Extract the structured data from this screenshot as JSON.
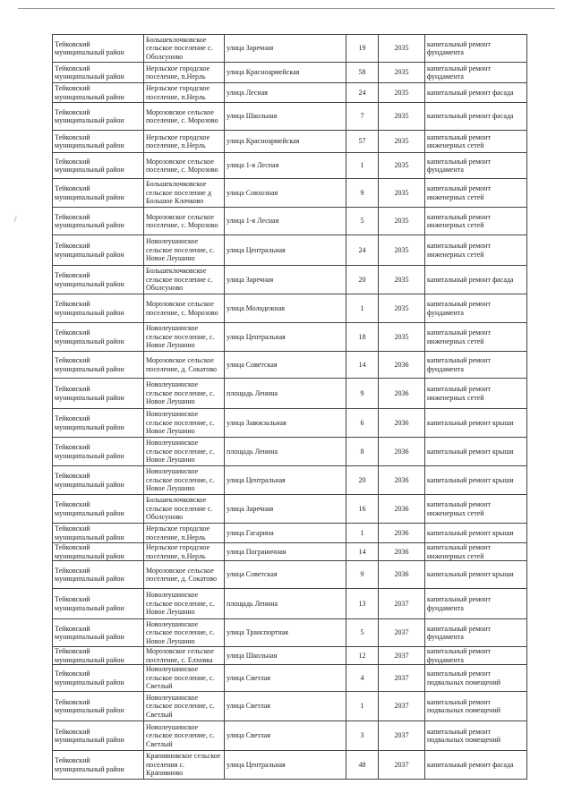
{
  "rows": [
    {
      "district": "Тейковский муниципальный район",
      "settlement": "Большеклочковское сельское поселение с. Оболсуново",
      "street": "улица Заречная",
      "house": "19",
      "year": "2035",
      "work": "капитальный ремонт фундамента"
    },
    {
      "district": "Тейковский муниципальный район",
      "settlement": "Нерльское городское поселение, п.Нерль",
      "street": "улица Красноармейская",
      "house": "58",
      "year": "2035",
      "work": "капитальный ремонт фундамента"
    },
    {
      "district": "Тейковский муниципальный район",
      "settlement": "Нерльское городское поселение, п.Нерль",
      "street": "улица Лесная",
      "house": "24",
      "year": "2035",
      "work": "капитальный ремонт фасада"
    },
    {
      "district": "Тейковский муниципальный район",
      "settlement": "Морозовское сельское поселение, с. Морозово",
      "street": "улица  Школьная",
      "house": "7",
      "year": "2035",
      "work": "капитальный ремонт фасада"
    },
    {
      "district": "Тейковский муниципальный район",
      "settlement": "Нерльское городское поселение, п.Нерль",
      "street": "улица Красноармейская",
      "house": "57",
      "year": "2035",
      "work": "капитальный ремонт инженерных сетей"
    },
    {
      "district": "Тейковский муниципальный район",
      "settlement": "Морозовское сельское поселение, с. Морозово",
      "street": "улица 1-я Лесная",
      "house": "1",
      "year": "2035",
      "work": "капитальный ремонт фундамента"
    },
    {
      "district": "Тейковский муниципальный район",
      "settlement": "Большеклочковское сельское поселение д Большое Клочково",
      "street": "улица Совхозная",
      "house": "9",
      "year": "2035",
      "work": "капитальный ремонт инженерных сетей"
    },
    {
      "district": "Тейковский муниципальный район",
      "settlement": "Морозовское сельское поселение, с. Морозово",
      "street": "улица 1-я Лесная",
      "house": "5",
      "year": "2035",
      "work": "капитальный ремонт инженерных сетей"
    },
    {
      "district": "Тейковский муниципальный район",
      "settlement": "Новолеушинское сельское поселение, с. Новое Леушино",
      "street": "улица Центральная",
      "house": "24",
      "year": "2035",
      "work": "капитальный ремонт инженерных сетей"
    },
    {
      "district": "Тейковский муниципальный район",
      "settlement": "Большеклочковское сельское поселение с. Оболсуново",
      "street": "улица Заречная",
      "house": "20",
      "year": "2035",
      "work": "капитальный ремонт фасада"
    },
    {
      "district": "Тейковский муниципальный район",
      "settlement": "Морозовское сельское поселение, с. Морозово",
      "street": "улица Молодежная",
      "house": "1",
      "year": "2035",
      "work": "капитальный ремонт фундамента"
    },
    {
      "district": "Тейковский муниципальный район",
      "settlement": "Новолеушинское сельское поселение, с. Новое Леушино",
      "street": "улица Центральная",
      "house": "18",
      "year": "2035",
      "work": "капитальный ремонт инженерных сетей"
    },
    {
      "district": "Тейковский муниципальный район",
      "settlement": "Морозовское сельское поселение, д. Сокатово",
      "street": "улица  Советская",
      "house": "14",
      "year": "2036",
      "work": "капитальный ремонт фундамента"
    },
    {
      "district": "Тейковский муниципальный район",
      "settlement": "Новолеушинское сельское поселение, с. Новое Леушино",
      "street": "площадь Ленина",
      "house": "9",
      "year": "2036",
      "work": "капитальный ремонт инженерных сетей"
    },
    {
      "district": "Тейковский муниципальный район",
      "settlement": "Новолеушинское сельское поселение, с. Новое Леушино",
      "street": "улица Завокзальная",
      "house": "6",
      "year": "2036",
      "work": "капитальный ремонт крыши"
    },
    {
      "district": "Тейковский муниципальный район",
      "settlement": "Новолеушинское сельское поселение, с. Новое Леушино",
      "street": "площадь Ленина",
      "house": "8",
      "year": "2036",
      "work": "капитальный ремонт крыши"
    },
    {
      "district": "Тейковский муниципальный район",
      "settlement": "Новолеушинское сельское поселение, с. Новое Леушино",
      "street": "улица Центральная",
      "house": "20",
      "year": "2036",
      "work": "капитальный ремонт крыши"
    },
    {
      "district": "Тейковский муниципальный район",
      "settlement": "Большеклочковское сельское поселение с. Оболсуново",
      "street": "улица Заречная",
      "house": "16",
      "year": "2036",
      "work": "капитальный ремонт инженерных сетей"
    },
    {
      "district": "Тейковский муниципальный район",
      "settlement": "Нерльское городское поселение, п.Нерль",
      "street": "улица Гагарина",
      "house": "1",
      "year": "2036",
      "work": "капитальный ремонт крыши"
    },
    {
      "district": "Тейковский муниципальный район",
      "settlement": "Нерльское городское поселение, п.Нерль",
      "street": "улица Пограничная",
      "house": "14",
      "year": "2036",
      "work": "капитальный ремонт инженерных сетей"
    },
    {
      "district": "Тейковский муниципальный район",
      "settlement": "Морозовское сельское поселение, д. Сокатово",
      "street": "улица  Советская",
      "house": "9",
      "year": "2036",
      "work": "капитальный ремонт крыши"
    },
    {
      "district": "Тейковский муниципальный район",
      "settlement": "Новолеушинское сельское поселение, с. Новое Леушино",
      "street": "площадь Ленина",
      "house": "13",
      "year": "2037",
      "work": "капитальный ремонт фундамента"
    },
    {
      "district": "Тейковский муниципальный район",
      "settlement": "Новолеушинское сельское поселение, с. Новое Леушино",
      "street": "улица Транспортная",
      "house": "5",
      "year": "2037",
      "work": "капитальный ремонт фундамента"
    },
    {
      "district": "Тейковский муниципальный район",
      "settlement": "Морозовское сельское поселение, с. Елховка",
      "street": "улица  Школьная",
      "house": "12",
      "year": "2037",
      "work": "капитальный ремонт фундамента"
    },
    {
      "district": "Тейковский муниципальный район",
      "settlement": "Новолеушинское сельское поселение, с. Светлый",
      "street": "улица Светлая",
      "house": "4",
      "year": "2037",
      "work": "капитальный ремонт подвальных помещений"
    },
    {
      "district": "Тейковский муниципальный район",
      "settlement": "Новолеушинское сельское поселение, с. Светлый",
      "street": "улица Светлая",
      "house": "1",
      "year": "2037",
      "work": "капитальный ремонт подвальных помещений"
    },
    {
      "district": "Тейковский муниципальный район",
      "settlement": "Новолеушинское сельское поселение, с. Светлый",
      "street": "улица Светлая",
      "house": "3",
      "year": "2037",
      "work": "капитальный ремонт подвальных помещений"
    },
    {
      "district": "Тейковский муниципальный район",
      "settlement": "Крапивновское сельское поселения с. Крапивново",
      "street": "улица Центральная",
      "house": "48",
      "year": "2037",
      "work": "капитальный ремонт фасада"
    }
  ]
}
